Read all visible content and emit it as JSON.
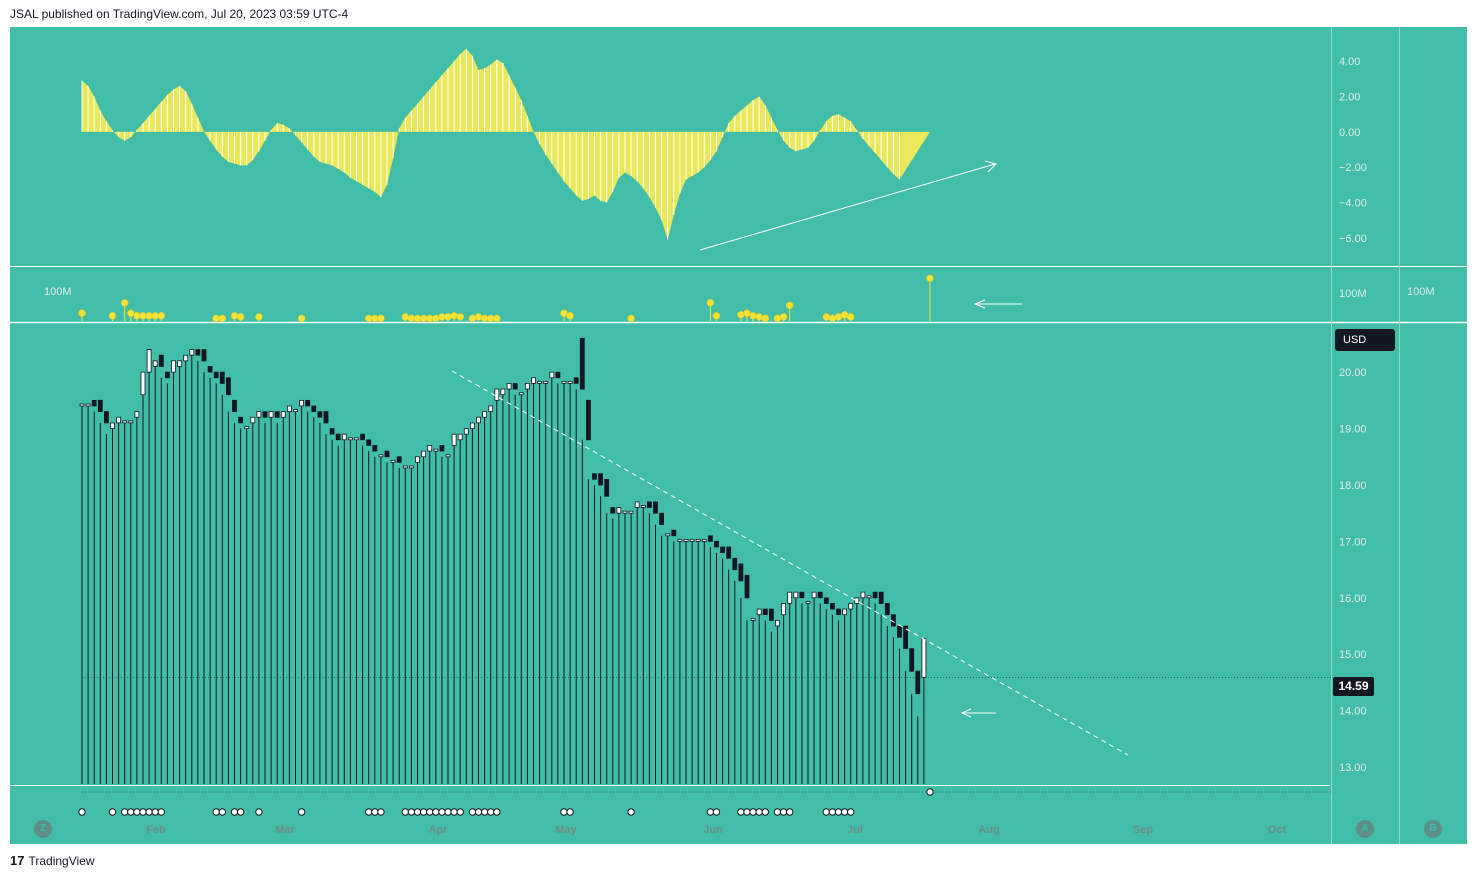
{
  "header": {
    "text": "JSAL published on TradingView.com, Jul 20, 2023 03:59 UTC-4"
  },
  "footer": {
    "logo": "17",
    "brand": "TradingView"
  },
  "badges": {
    "currency": "USD",
    "last_price": "14.59"
  },
  "corner_buttons": {
    "left": "Z",
    "a": "A",
    "b": "B"
  },
  "volume_labels": {
    "left": "100M",
    "right": "100M",
    "far_right": "100M"
  },
  "chart_data": [
    {
      "type": "area",
      "panel": "oscillator",
      "y_ticks": [
        "4.00",
        "2.00",
        "0.00",
        "−2.00",
        "−4.00",
        "−6.00"
      ],
      "y_tick_values": [
        4,
        2,
        0,
        -2,
        -4,
        -6
      ],
      "ylim": [
        -6.8,
        4.8
      ],
      "color": "#e8e85a",
      "n_days": 140,
      "values": [
        2.9,
        2.6,
        2.0,
        1.2,
        0.6,
        0.1,
        -0.3,
        -0.5,
        -0.3,
        0.1,
        0.5,
        0.9,
        1.3,
        1.7,
        2.1,
        2.4,
        2.6,
        2.3,
        1.6,
        0.8,
        0.0,
        -0.5,
        -1.0,
        -1.4,
        -1.7,
        -1.8,
        -1.9,
        -1.9,
        -1.6,
        -1.1,
        -0.5,
        0.1,
        0.5,
        0.4,
        0.2,
        -0.2,
        -0.6,
        -1.0,
        -1.4,
        -1.7,
        -1.8,
        -1.9,
        -2.1,
        -2.3,
        -2.6,
        -2.8,
        -3.0,
        -3.2,
        -3.4,
        -3.7,
        -3.0,
        -1.5,
        0.2,
        0.8,
        1.2,
        1.6,
        2.0,
        2.4,
        2.8,
        3.2,
        3.6,
        4.0,
        4.4,
        4.7,
        4.3,
        3.5,
        3.6,
        3.8,
        4.1,
        3.9,
        3.2,
        2.5,
        1.8,
        0.9,
        0.0,
        -0.7,
        -1.3,
        -1.8,
        -2.3,
        -2.8,
        -3.2,
        -3.6,
        -3.9,
        -3.8,
        -3.6,
        -3.9,
        -4.0,
        -3.4,
        -2.6,
        -2.3,
        -2.5,
        -2.8,
        -3.2,
        -3.7,
        -4.3,
        -5.0,
        -6.1,
        -4.7,
        -3.5,
        -2.7,
        -2.5,
        -2.3,
        -2.0,
        -1.6,
        -1.1,
        -0.3,
        0.5,
        0.9,
        1.2,
        1.5,
        1.8,
        2.0,
        1.5,
        0.8,
        0.1,
        -0.5,
        -0.9,
        -1.1,
        -1.0,
        -0.9,
        -0.5,
        0.1,
        0.6,
        0.9,
        1.0,
        0.8,
        0.6,
        0.1,
        -0.4,
        -0.8,
        -1.2,
        -1.6,
        -2.0,
        -2.4,
        -2.7
      ]
    },
    {
      "type": "scatter",
      "panel": "volume",
      "color": "#f3e339",
      "points": [
        [
          0,
          0.15
        ],
        [
          5,
          0.1
        ],
        [
          7,
          0.35
        ],
        [
          8,
          0.15
        ],
        [
          9,
          0.1
        ],
        [
          10,
          0.1
        ],
        [
          11,
          0.1
        ],
        [
          12,
          0.1
        ],
        [
          13,
          0.1
        ],
        [
          22,
          0.05
        ],
        [
          23,
          0.05
        ],
        [
          25,
          0.1
        ],
        [
          26,
          0.08
        ],
        [
          29,
          0.08
        ],
        [
          36,
          0.05
        ],
        [
          47,
          0.05
        ],
        [
          48,
          0.05
        ],
        [
          49,
          0.05
        ],
        [
          53,
          0.08
        ],
        [
          54,
          0.05
        ],
        [
          55,
          0.05
        ],
        [
          56,
          0.05
        ],
        [
          57,
          0.05
        ],
        [
          58,
          0.05
        ],
        [
          59,
          0.08
        ],
        [
          60,
          0.08
        ],
        [
          61,
          0.1
        ],
        [
          62,
          0.08
        ],
        [
          64,
          0.05
        ],
        [
          65,
          0.08
        ],
        [
          66,
          0.05
        ],
        [
          67,
          0.05
        ],
        [
          68,
          0.05
        ],
        [
          79,
          0.15
        ],
        [
          80,
          0.1
        ],
        [
          90,
          0.05
        ],
        [
          103,
          0.35
        ],
        [
          104,
          0.1
        ],
        [
          108,
          0.12
        ],
        [
          109,
          0.15
        ],
        [
          110,
          0.1
        ],
        [
          111,
          0.08
        ],
        [
          112,
          0.05
        ],
        [
          114,
          0.05
        ],
        [
          115,
          0.08
        ],
        [
          116,
          0.3
        ],
        [
          122,
          0.08
        ],
        [
          123,
          0.05
        ],
        [
          124,
          0.08
        ],
        [
          125,
          0.12
        ],
        [
          126,
          0.08
        ],
        [
          139,
          0.82
        ]
      ]
    },
    {
      "type": "bar",
      "panel": "price",
      "y_ticks": [
        "20.00",
        "19.00",
        "18.00",
        "17.00",
        "16.00",
        "15.00",
        "14.00",
        "13.00"
      ],
      "y_tick_values": [
        20,
        19,
        18,
        17,
        16,
        15,
        14,
        13
      ],
      "ylim": [
        12.7,
        20.8
      ],
      "x_ticks": [
        "Feb",
        "Mar",
        "Apr",
        "May",
        "Jun",
        "Jul",
        "Aug",
        "Sep",
        "Oct"
      ],
      "bar_color": "#131722",
      "last_value": 14.59,
      "values": [
        19.4,
        19.4,
        19.3,
        19.1,
        18.9,
        19.0,
        19.1,
        19.1,
        19.1,
        19.2,
        19.6,
        20.0,
        20.1,
        19.9,
        19.8,
        20.0,
        20.1,
        20.2,
        20.3,
        20.2,
        20.0,
        19.9,
        19.8,
        19.6,
        19.3,
        19.1,
        19.0,
        19.0,
        19.1,
        19.2,
        19.1,
        19.2,
        19.1,
        19.2,
        19.3,
        19.3,
        19.4,
        19.3,
        19.2,
        19.1,
        18.9,
        18.8,
        18.7,
        18.8,
        18.8,
        18.8,
        18.7,
        18.6,
        18.5,
        18.5,
        18.4,
        18.4,
        18.3,
        18.3,
        18.3,
        18.4,
        18.5,
        18.6,
        18.6,
        18.5,
        18.5,
        18.7,
        18.8,
        18.9,
        19.0,
        19.1,
        19.2,
        19.3,
        19.5,
        19.6,
        19.7,
        19.6,
        19.6,
        19.7,
        19.8,
        19.8,
        19.8,
        19.9,
        19.8,
        19.8,
        19.8,
        19.7,
        18.8,
        18.1,
        18.0,
        17.8,
        17.5,
        17.4,
        17.5,
        17.5,
        17.5,
        17.6,
        17.6,
        17.5,
        17.3,
        17.1,
        17.1,
        17.0,
        17.0,
        17.0,
        17.0,
        17.0,
        17.0,
        16.9,
        16.8,
        16.7,
        16.5,
        16.3,
        16.0,
        15.6,
        15.6,
        15.7,
        15.6,
        15.4,
        15.5,
        15.7,
        15.9,
        16.0,
        15.9,
        15.9,
        16.0,
        15.9,
        15.8,
        15.7,
        15.6,
        15.7,
        15.8,
        15.9,
        16.0,
        16.0,
        15.9,
        15.7,
        15.5,
        15.3,
        15.1,
        14.7,
        14.3,
        13.9,
        14.59
      ],
      "trendline": "dashed descending"
    }
  ]
}
